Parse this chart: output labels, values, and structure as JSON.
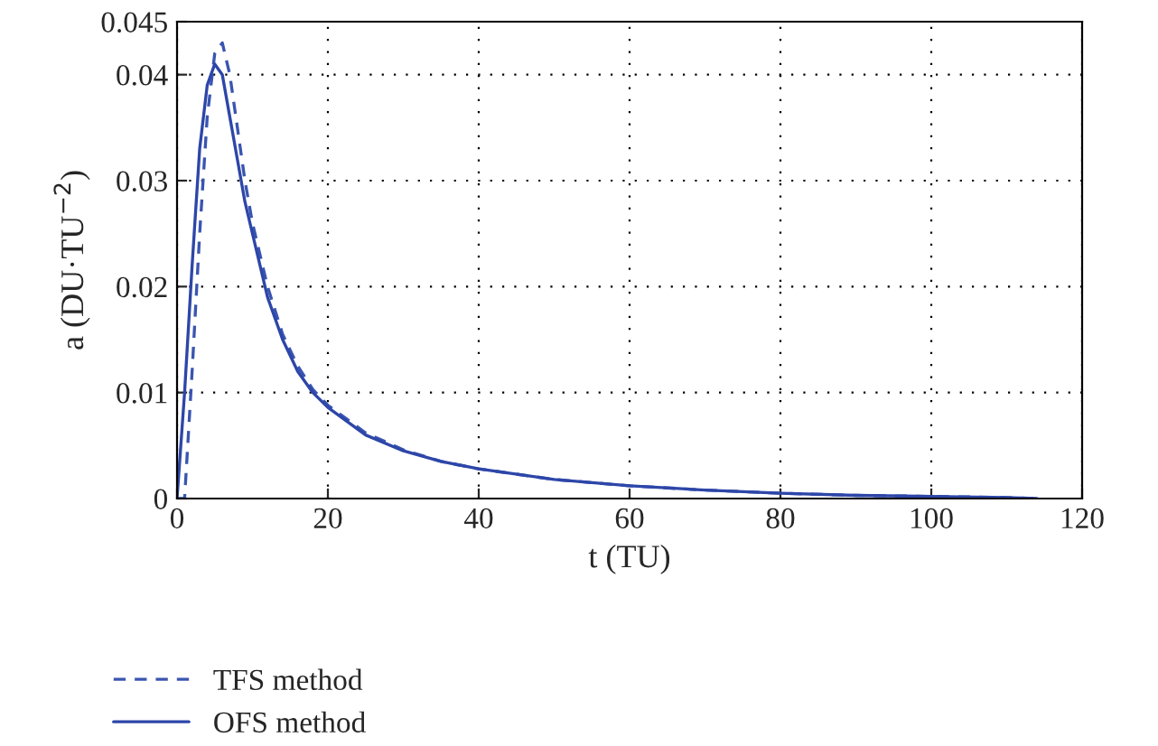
{
  "chart_data": {
    "type": "line",
    "xlabel": "t (TU)",
    "ylabel": "a (DU·TU$^{−2}$)",
    "xlim": [
      0,
      120
    ],
    "xticks": [
      0,
      20,
      40,
      60,
      80,
      100,
      120
    ],
    "ylim": [
      0,
      0.045
    ],
    "yticks": [
      0,
      0.01,
      0.02,
      0.03,
      0.04,
      0.045
    ],
    "grid": true,
    "legend": "bottom left",
    "series": [
      {
        "name": "TFS method",
        "color": "#3a55b0",
        "line_style": "dashed",
        "x": [
          0,
          1,
          2,
          3,
          4,
          5,
          6,
          7,
          8,
          9,
          10,
          12,
          14,
          16,
          18,
          20,
          25,
          30,
          35,
          40,
          50,
          60,
          70,
          80,
          90,
          100,
          110,
          114
        ],
        "values": [
          0,
          0.0,
          0.012,
          0.025,
          0.036,
          0.042,
          0.043,
          0.04,
          0.035,
          0.03,
          0.026,
          0.02,
          0.0155,
          0.0125,
          0.0103,
          0.0088,
          0.0062,
          0.0046,
          0.0035,
          0.0028,
          0.0018,
          0.0012,
          0.0008,
          0.0005,
          0.0003,
          0.0002,
          0.0001,
          0
        ]
      },
      {
        "name": "OFS method",
        "color": "#2d46a8",
        "line_style": "solid",
        "x": [
          0,
          1,
          2,
          3,
          4,
          5,
          6,
          7,
          8,
          9,
          10,
          12,
          14,
          16,
          18,
          20,
          25,
          30,
          35,
          40,
          50,
          60,
          70,
          80,
          90,
          100,
          110,
          114
        ],
        "values": [
          0,
          0.01,
          0.022,
          0.033,
          0.039,
          0.041,
          0.04,
          0.036,
          0.032,
          0.028,
          0.025,
          0.019,
          0.015,
          0.012,
          0.01,
          0.0086,
          0.006,
          0.0045,
          0.0035,
          0.0028,
          0.0018,
          0.0012,
          0.0008,
          0.0005,
          0.0003,
          0.0002,
          0.0001,
          0
        ]
      }
    ]
  }
}
